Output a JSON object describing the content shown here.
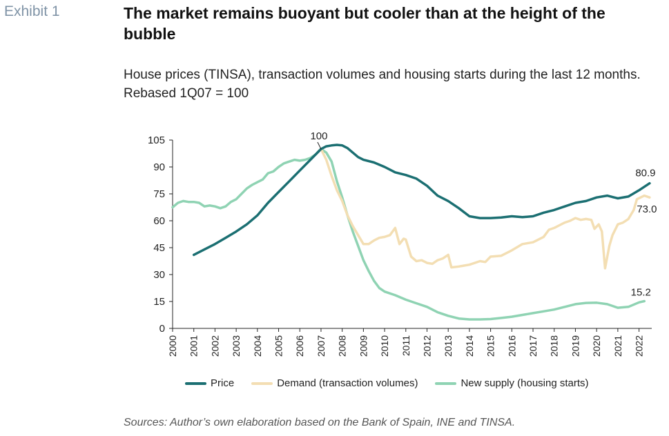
{
  "exhibit_label": "Exhibit 1",
  "title": "The market remains buoyant but cooler than at the height of the bubble",
  "subtitle": "House prices (TINSA), transaction volumes and housing starts during the last 12 months. Rebased 1Q07 = 100",
  "source": "Sources: Author’s own elaboration based on the Bank of Spain, INE and TINSA.",
  "chart_data": {
    "type": "line",
    "title": "The market remains buoyant but cooler than at the height of the bubble",
    "ylim": [
      0,
      105
    ],
    "yticks": [
      0,
      15,
      30,
      45,
      60,
      75,
      90,
      105
    ],
    "xlim": [
      2000,
      2022.6
    ],
    "xticks": [
      2000,
      2001,
      2002,
      2003,
      2004,
      2005,
      2006,
      2007,
      2008,
      2009,
      2010,
      2011,
      2012,
      2013,
      2014,
      2015,
      2016,
      2017,
      2018,
      2019,
      2020,
      2021,
      2022
    ],
    "grid": false,
    "legend_position": "bottom",
    "annotations": [
      {
        "text": "100",
        "x": 2007.0,
        "y": 100
      },
      {
        "text": "80.9",
        "series": "Price",
        "x": 2022.5,
        "y": 80.9
      },
      {
        "text": "73.0",
        "series": "Demand (transaction volumes)",
        "x": 2022.5,
        "y": 73.0
      },
      {
        "text": "15.2",
        "series": "New supply (housing starts)",
        "x": 2022.25,
        "y": 15.2
      }
    ],
    "series": [
      {
        "name": "Price",
        "color": "#1b6f72",
        "points": [
          [
            2001.0,
            41
          ],
          [
            2001.5,
            44
          ],
          [
            2002.0,
            47
          ],
          [
            2002.5,
            50.5
          ],
          [
            2003.0,
            54
          ],
          [
            2003.5,
            58
          ],
          [
            2004.0,
            63
          ],
          [
            2004.5,
            70
          ],
          [
            2005.0,
            76
          ],
          [
            2005.5,
            82
          ],
          [
            2006.0,
            88
          ],
          [
            2006.5,
            94
          ],
          [
            2007.0,
            100
          ],
          [
            2007.25,
            101.5
          ],
          [
            2007.5,
            102
          ],
          [
            2007.75,
            102.3
          ],
          [
            2008.0,
            102
          ],
          [
            2008.25,
            100.5
          ],
          [
            2008.5,
            98
          ],
          [
            2008.75,
            95.5
          ],
          [
            2009.0,
            94
          ],
          [
            2009.5,
            92.5
          ],
          [
            2010.0,
            90
          ],
          [
            2010.5,
            87
          ],
          [
            2011.0,
            85.5
          ],
          [
            2011.5,
            83.5
          ],
          [
            2012.0,
            79.5
          ],
          [
            2012.5,
            74
          ],
          [
            2013.0,
            71
          ],
          [
            2013.5,
            67
          ],
          [
            2014.0,
            62.5
          ],
          [
            2014.5,
            61.5
          ],
          [
            2015.0,
            61.5
          ],
          [
            2015.5,
            61.8
          ],
          [
            2016.0,
            62.5
          ],
          [
            2016.5,
            62
          ],
          [
            2017.0,
            62.5
          ],
          [
            2017.5,
            64.5
          ],
          [
            2018.0,
            66
          ],
          [
            2018.5,
            68
          ],
          [
            2019.0,
            70
          ],
          [
            2019.5,
            71
          ],
          [
            2020.0,
            73
          ],
          [
            2020.5,
            74
          ],
          [
            2021.0,
            72.5
          ],
          [
            2021.5,
            73.5
          ],
          [
            2022.0,
            77
          ],
          [
            2022.5,
            80.9
          ]
        ]
      },
      {
        "name": "Demand (transaction volumes)",
        "color": "#f3deb3",
        "points": [
          [
            2006.75,
            97
          ],
          [
            2007.0,
            100
          ],
          [
            2007.25,
            94
          ],
          [
            2007.5,
            85
          ],
          [
            2007.75,
            77
          ],
          [
            2008.0,
            71
          ],
          [
            2008.25,
            63
          ],
          [
            2008.5,
            57
          ],
          [
            2008.75,
            52
          ],
          [
            2009.0,
            47
          ],
          [
            2009.25,
            47
          ],
          [
            2009.5,
            49
          ],
          [
            2009.75,
            50.5
          ],
          [
            2010.0,
            51
          ],
          [
            2010.25,
            52
          ],
          [
            2010.5,
            56
          ],
          [
            2010.7,
            47
          ],
          [
            2010.9,
            50
          ],
          [
            2011.0,
            49.5
          ],
          [
            2011.25,
            40
          ],
          [
            2011.5,
            37.5
          ],
          [
            2011.75,
            38
          ],
          [
            2012.0,
            36.5
          ],
          [
            2012.25,
            36
          ],
          [
            2012.5,
            38
          ],
          [
            2012.75,
            39
          ],
          [
            2013.0,
            41
          ],
          [
            2013.15,
            34
          ],
          [
            2013.5,
            34.5
          ],
          [
            2013.75,
            35
          ],
          [
            2014.0,
            35.5
          ],
          [
            2014.5,
            37.5
          ],
          [
            2014.75,
            37
          ],
          [
            2015.0,
            40
          ],
          [
            2015.5,
            40.5
          ],
          [
            2016.0,
            43.5
          ],
          [
            2016.5,
            47
          ],
          [
            2017.0,
            48
          ],
          [
            2017.5,
            51
          ],
          [
            2017.75,
            55
          ],
          [
            2018.0,
            56
          ],
          [
            2018.25,
            57.5
          ],
          [
            2018.5,
            59
          ],
          [
            2018.75,
            60
          ],
          [
            2019.0,
            61.5
          ],
          [
            2019.25,
            60.5
          ],
          [
            2019.5,
            61
          ],
          [
            2019.75,
            60.5
          ],
          [
            2019.9,
            55.5
          ],
          [
            2020.1,
            58
          ],
          [
            2020.25,
            54
          ],
          [
            2020.4,
            33.5
          ],
          [
            2020.6,
            46
          ],
          [
            2020.75,
            52
          ],
          [
            2021.0,
            58
          ],
          [
            2021.25,
            59
          ],
          [
            2021.5,
            61
          ],
          [
            2021.75,
            66
          ],
          [
            2021.9,
            72
          ],
          [
            2022.25,
            74
          ],
          [
            2022.5,
            73.0
          ]
        ]
      },
      {
        "name": "New supply (housing starts)",
        "color": "#8fd3b3",
        "points": [
          [
            2000.0,
            67.5
          ],
          [
            2000.25,
            70
          ],
          [
            2000.5,
            71
          ],
          [
            2000.75,
            70.5
          ],
          [
            2001.0,
            70.5
          ],
          [
            2001.25,
            70
          ],
          [
            2001.5,
            68
          ],
          [
            2001.75,
            68.5
          ],
          [
            2002.0,
            68
          ],
          [
            2002.25,
            67
          ],
          [
            2002.5,
            68
          ],
          [
            2002.75,
            70.5
          ],
          [
            2003.0,
            72
          ],
          [
            2003.25,
            75
          ],
          [
            2003.5,
            78
          ],
          [
            2003.75,
            80
          ],
          [
            2004.0,
            81.5
          ],
          [
            2004.25,
            83
          ],
          [
            2004.5,
            86.5
          ],
          [
            2004.75,
            87.5
          ],
          [
            2005.0,
            90
          ],
          [
            2005.25,
            92
          ],
          [
            2005.5,
            93
          ],
          [
            2005.75,
            94
          ],
          [
            2006.0,
            93.5
          ],
          [
            2006.25,
            94
          ],
          [
            2006.5,
            95
          ],
          [
            2006.75,
            97
          ],
          [
            2006.9,
            99
          ],
          [
            2007.0,
            100
          ],
          [
            2007.25,
            98
          ],
          [
            2007.5,
            93
          ],
          [
            2007.75,
            82
          ],
          [
            2008.0,
            73
          ],
          [
            2008.25,
            63
          ],
          [
            2008.5,
            54
          ],
          [
            2008.75,
            46
          ],
          [
            2009.0,
            38
          ],
          [
            2009.25,
            32
          ],
          [
            2009.5,
            26.5
          ],
          [
            2009.75,
            22.5
          ],
          [
            2010.0,
            20.5
          ],
          [
            2010.5,
            18.5
          ],
          [
            2011.0,
            16
          ],
          [
            2011.5,
            14
          ],
          [
            2012.0,
            12
          ],
          [
            2012.5,
            9
          ],
          [
            2013.0,
            7
          ],
          [
            2013.5,
            5.5
          ],
          [
            2014.0,
            5
          ],
          [
            2014.5,
            5
          ],
          [
            2015.0,
            5.2
          ],
          [
            2015.5,
            5.8
          ],
          [
            2016.0,
            6.5
          ],
          [
            2016.5,
            7.5
          ],
          [
            2017.0,
            8.5
          ],
          [
            2017.5,
            9.5
          ],
          [
            2018.0,
            10.5
          ],
          [
            2018.5,
            12
          ],
          [
            2019.0,
            13.5
          ],
          [
            2019.5,
            14.2
          ],
          [
            2020.0,
            14.3
          ],
          [
            2020.5,
            13.5
          ],
          [
            2021.0,
            11.5
          ],
          [
            2021.5,
            12
          ],
          [
            2022.0,
            14.5
          ],
          [
            2022.25,
            15.2
          ]
        ]
      }
    ]
  }
}
